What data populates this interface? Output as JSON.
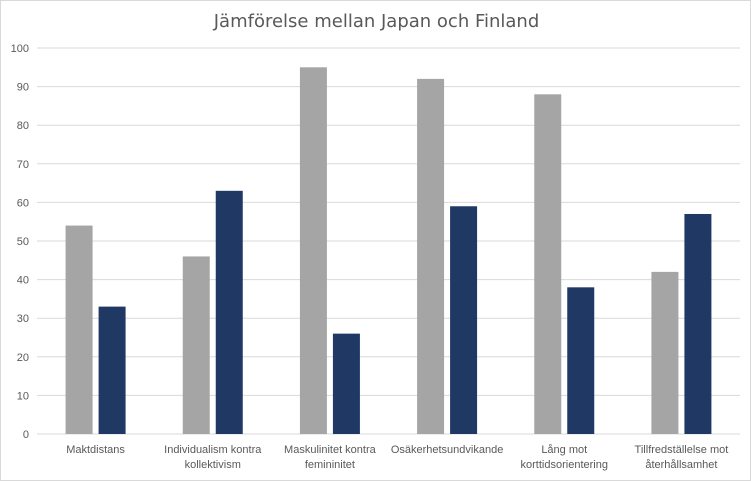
{
  "chart_data": {
    "type": "bar",
    "title": "Jämförelse mellan Japan och Finland",
    "xlabel": "",
    "ylabel": "",
    "ylim": [
      0,
      100
    ],
    "yticks": [
      0,
      10,
      20,
      30,
      40,
      50,
      60,
      70,
      80,
      90,
      100
    ],
    "grid": true,
    "legend": "none",
    "categories": [
      [
        "Maktdistans"
      ],
      [
        "Individualism kontra",
        "kollektivism"
      ],
      [
        "Maskulinitet kontra",
        "femininitet"
      ],
      [
        "Osäkerhetsundvikande"
      ],
      [
        "Lång mot",
        "korttidsorientering"
      ],
      [
        "Tillfredställelse mot",
        "återhållsamhet"
      ]
    ],
    "series": [
      {
        "values": [
          54,
          46,
          95,
          92,
          88,
          42
        ],
        "color": "#a5a5a5"
      },
      {
        "values": [
          33,
          63,
          26,
          59,
          38,
          57
        ],
        "color": "#1f3864"
      }
    ]
  }
}
